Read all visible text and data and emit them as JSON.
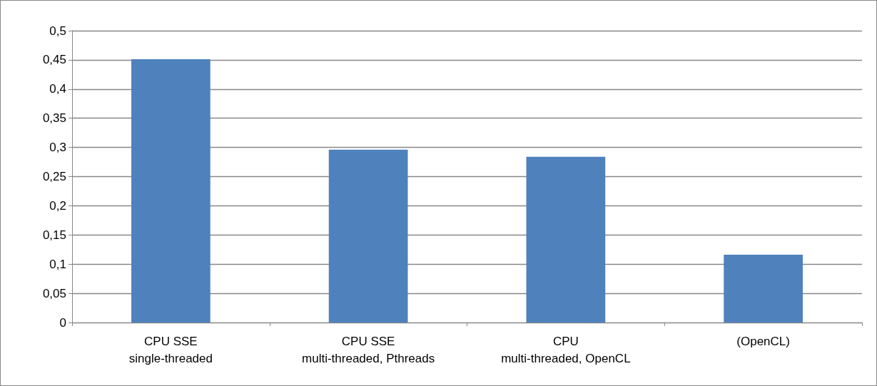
{
  "chart_data": {
    "type": "bar",
    "categories": [
      "CPU SSE\nsingle-threaded",
      "CPU SSE\nmulti-threaded, Pthreads",
      "CPU\nmulti-threaded, OpenCL",
      "(OpenCL)"
    ],
    "values": [
      0.451,
      0.296,
      0.284,
      0.116
    ],
    "color": "#4f81bd",
    "ylim": [
      0,
      0.5
    ],
    "yticks": [
      0,
      {
        "value": 0.05,
        "label": "0,05"
      },
      {
        "value": 0.1,
        "label": "0,1"
      },
      {
        "value": 0.15,
        "label": "0,15"
      },
      {
        "value": 0.2,
        "label": "0,2"
      },
      {
        "value": 0.25,
        "label": "0,25"
      },
      {
        "value": 0.3,
        "label": "0,3"
      },
      {
        "value": 0.35,
        "label": "0,35"
      },
      {
        "value": 0.4,
        "label": "0,4"
      },
      {
        "value": 0.45,
        "label": "0,45"
      },
      {
        "value": 0.5,
        "label": "0,5"
      }
    ],
    "grid": "y"
  }
}
